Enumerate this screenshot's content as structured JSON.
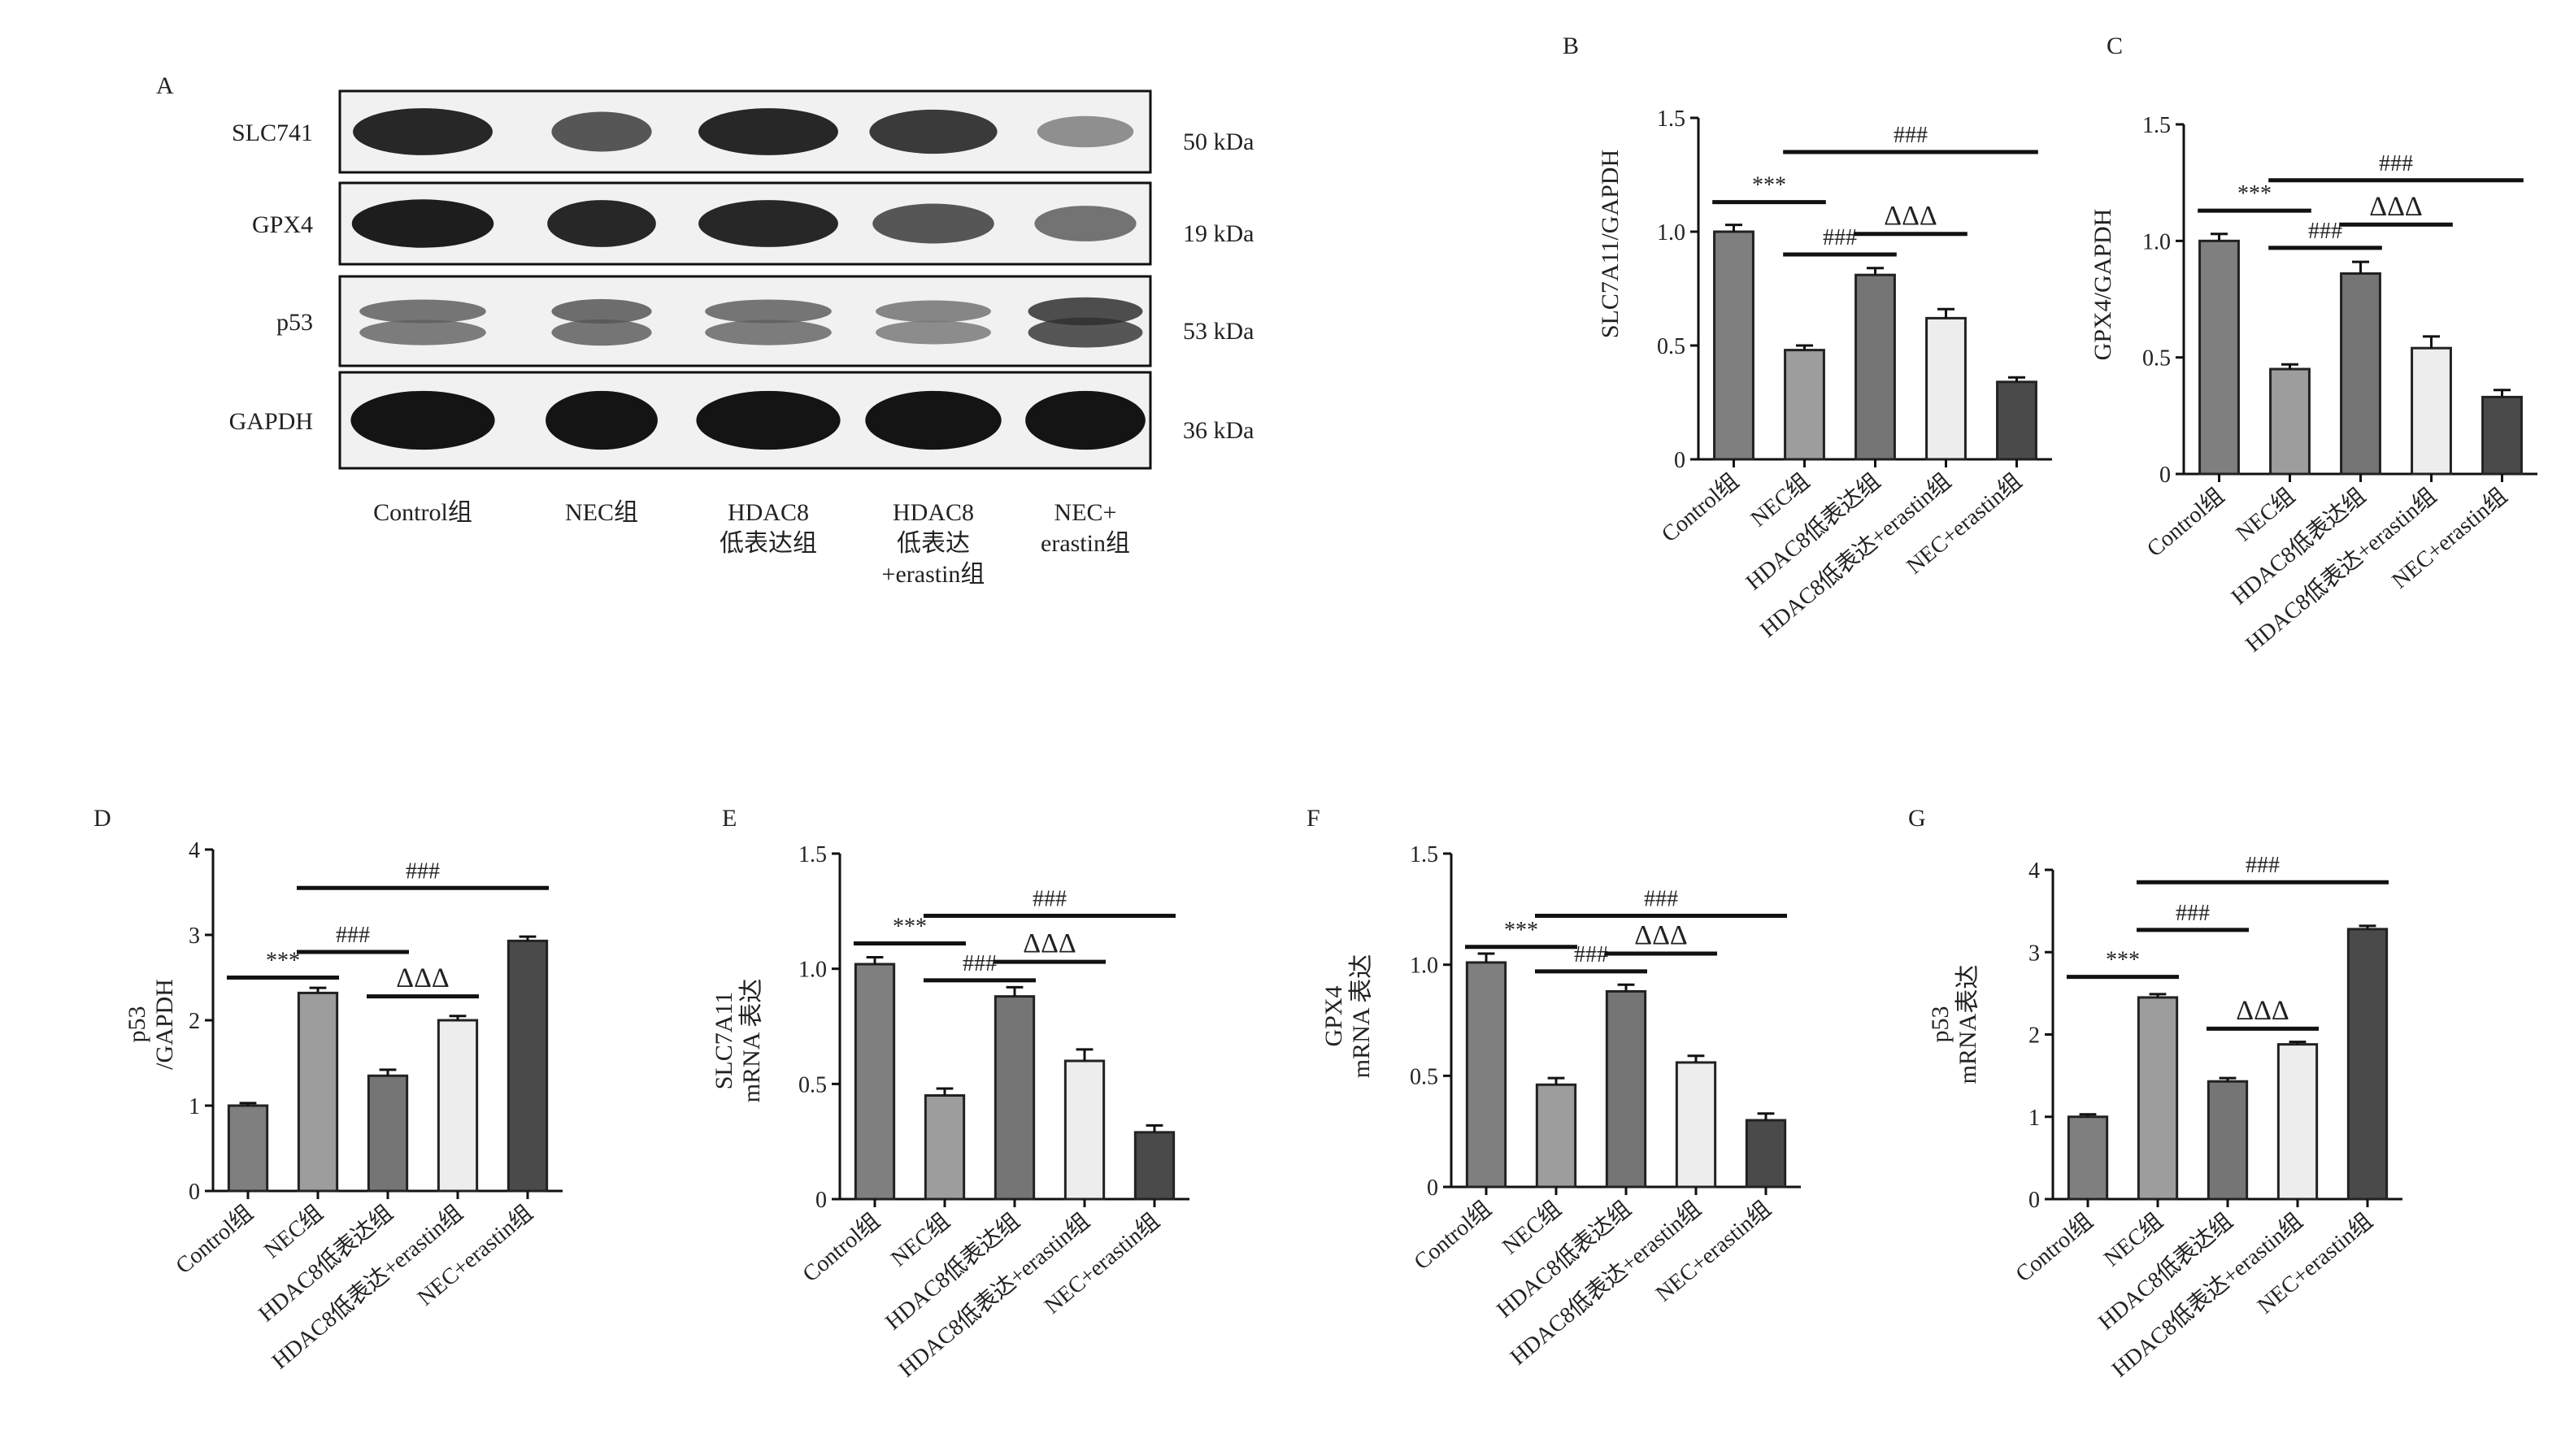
{
  "figure": {
    "panel_a": {
      "label": "A",
      "bands": [
        {
          "protein": "SLC741",
          "size": "50 kDa"
        },
        {
          "protein": "GPX4",
          "size": "19 kDa"
        },
        {
          "protein": "p53",
          "size": "53 kDa"
        },
        {
          "protein": "GAPDH",
          "size": "36 kDa"
        }
      ],
      "lanes": [
        [
          "Control组"
        ],
        [
          "NEC组"
        ],
        [
          "HDAC8",
          "低表达组"
        ],
        [
          "HDAC8",
          "低表达",
          "+erastin组"
        ],
        [
          "NEC+",
          "erastin组"
        ]
      ],
      "band_intensity": {
        "SLC741": [
          0.85,
          0.6,
          0.85,
          0.75,
          0.3
        ],
        "GPX4": [
          0.9,
          0.85,
          0.85,
          0.6,
          0.45
        ],
        "p53": [
          0.55,
          0.6,
          0.55,
          0.45,
          0.8
        ],
        "GAPDH": [
          0.95,
          0.95,
          0.95,
          0.95,
          0.95
        ]
      }
    }
  },
  "chart_data": [
    {
      "panel": "B",
      "type": "bar",
      "ylabel": [
        "SLC7A11/GAPDH"
      ],
      "ylim": [
        0,
        1.5
      ],
      "yticks": [
        "0",
        "0.5",
        "1.0",
        "1.5"
      ],
      "categories": [
        "Control组",
        "NEC组",
        "HDAC8低表达组",
        "HDAC8低表达+erastin组",
        "NEC+erastin组"
      ],
      "values": [
        1.0,
        0.48,
        0.81,
        0.62,
        0.34
      ],
      "errors": [
        0.03,
        0.02,
        0.03,
        0.04,
        0.02
      ],
      "annotations": [
        {
          "text": "***",
          "from": 0,
          "to": 1,
          "level": 1.13
        },
        {
          "text": "###",
          "from": 1,
          "to": 4,
          "level": 1.35
        },
        {
          "text": "###",
          "from": 1,
          "to": 2,
          "level": 0.9
        },
        {
          "text": "ΔΔΔ",
          "from": 2,
          "to": 3,
          "level": 0.99
        }
      ]
    },
    {
      "panel": "C",
      "type": "bar",
      "ylabel": [
        "GPX4/GAPDH"
      ],
      "ylim": [
        0,
        1.5
      ],
      "yticks": [
        "0",
        "0.5",
        "1.0",
        "1.5"
      ],
      "categories": [
        "Control组",
        "NEC组",
        "HDAC8低表达组",
        "HDAC8低表达+erastin组",
        "NEC+erastin组"
      ],
      "values": [
        1.0,
        0.45,
        0.86,
        0.54,
        0.33
      ],
      "errors": [
        0.03,
        0.02,
        0.05,
        0.05,
        0.03
      ],
      "annotations": [
        {
          "text": "***",
          "from": 0,
          "to": 1,
          "level": 1.13
        },
        {
          "text": "###",
          "from": 1,
          "to": 4,
          "level": 1.26
        },
        {
          "text": "###",
          "from": 1,
          "to": 2,
          "level": 0.97
        },
        {
          "text": "ΔΔΔ",
          "from": 2,
          "to": 3,
          "level": 1.07
        }
      ]
    },
    {
      "panel": "D",
      "type": "bar",
      "ylabel": [
        "p53",
        "/GAPDH"
      ],
      "ylim": [
        0,
        4
      ],
      "yticks": [
        "0",
        "1",
        "2",
        "3",
        "4"
      ],
      "categories": [
        "Control组",
        "NEC组",
        "HDAC8低表达组",
        "HDAC8低表达+erastin组",
        "NEC+erastin组"
      ],
      "values": [
        1.0,
        2.32,
        1.35,
        2.0,
        2.93
      ],
      "errors": [
        0.03,
        0.06,
        0.07,
        0.05,
        0.05
      ],
      "annotations": [
        {
          "text": "***",
          "from": 0,
          "to": 1,
          "level": 2.5
        },
        {
          "text": "###",
          "from": 1,
          "to": 4,
          "level": 3.55
        },
        {
          "text": "###",
          "from": 1,
          "to": 2,
          "level": 2.8
        },
        {
          "text": "ΔΔΔ",
          "from": 2,
          "to": 3,
          "level": 2.28
        }
      ]
    },
    {
      "panel": "E",
      "type": "bar",
      "ylabel": [
        "SLC7A11",
        "mRNA 表达"
      ],
      "ylim": [
        0,
        1.5
      ],
      "yticks": [
        "0",
        "0.5",
        "1.0",
        "1.5"
      ],
      "categories": [
        "Control组",
        "NEC组",
        "HDAC8低表达组",
        "HDAC8低表达+erastin组",
        "NEC+erastin组"
      ],
      "values": [
        1.02,
        0.45,
        0.88,
        0.6,
        0.29
      ],
      "errors": [
        0.03,
        0.03,
        0.04,
        0.05,
        0.03
      ],
      "annotations": [
        {
          "text": "***",
          "from": 0,
          "to": 1,
          "level": 1.11
        },
        {
          "text": "###",
          "from": 1,
          "to": 4,
          "level": 1.23
        },
        {
          "text": "###",
          "from": 1,
          "to": 2,
          "level": 0.95
        },
        {
          "text": "ΔΔΔ",
          "from": 2,
          "to": 3,
          "level": 1.03
        }
      ]
    },
    {
      "panel": "F",
      "type": "bar",
      "ylabel": [
        "GPX4",
        "mRNA 表达"
      ],
      "ylim": [
        0,
        1.5
      ],
      "yticks": [
        "0",
        "0.5",
        "1.0",
        "1.5"
      ],
      "categories": [
        "Control组",
        "NEC组",
        "HDAC8低表达组",
        "HDAC8低表达+erastin组",
        "NEC+erastin组"
      ],
      "values": [
        1.01,
        0.46,
        0.88,
        0.56,
        0.3
      ],
      "errors": [
        0.04,
        0.03,
        0.03,
        0.03,
        0.03
      ],
      "annotations": [
        {
          "text": "***",
          "from": 0,
          "to": 1,
          "level": 1.08
        },
        {
          "text": "###",
          "from": 1,
          "to": 4,
          "level": 1.22
        },
        {
          "text": "###",
          "from": 1,
          "to": 2,
          "level": 0.97
        },
        {
          "text": "ΔΔΔ",
          "from": 2,
          "to": 3,
          "level": 1.05
        }
      ]
    },
    {
      "panel": "G",
      "type": "bar",
      "ylabel": [
        "p53",
        "mRNA表达"
      ],
      "ylim": [
        0,
        4
      ],
      "yticks": [
        "0",
        "1",
        "2",
        "3",
        "4"
      ],
      "categories": [
        "Control组",
        "NEC组",
        "HDAC8低表达组",
        "HDAC8低表达+erastin组",
        "NEC+erastin组"
      ],
      "values": [
        1.0,
        2.45,
        1.43,
        1.88,
        3.28
      ],
      "errors": [
        0.03,
        0.04,
        0.04,
        0.03,
        0.04
      ],
      "annotations": [
        {
          "text": "***",
          "from": 0,
          "to": 1,
          "level": 2.7
        },
        {
          "text": "###",
          "from": 1,
          "to": 4,
          "level": 3.85
        },
        {
          "text": "###",
          "from": 1,
          "to": 2,
          "level": 3.27
        },
        {
          "text": "ΔΔΔ",
          "from": 2,
          "to": 3,
          "level": 2.07
        }
      ]
    }
  ],
  "bar_colors": [
    "#7f7f7f",
    "#9d9d9d",
    "#757575",
    "#ededed",
    "#4a4a4a"
  ]
}
